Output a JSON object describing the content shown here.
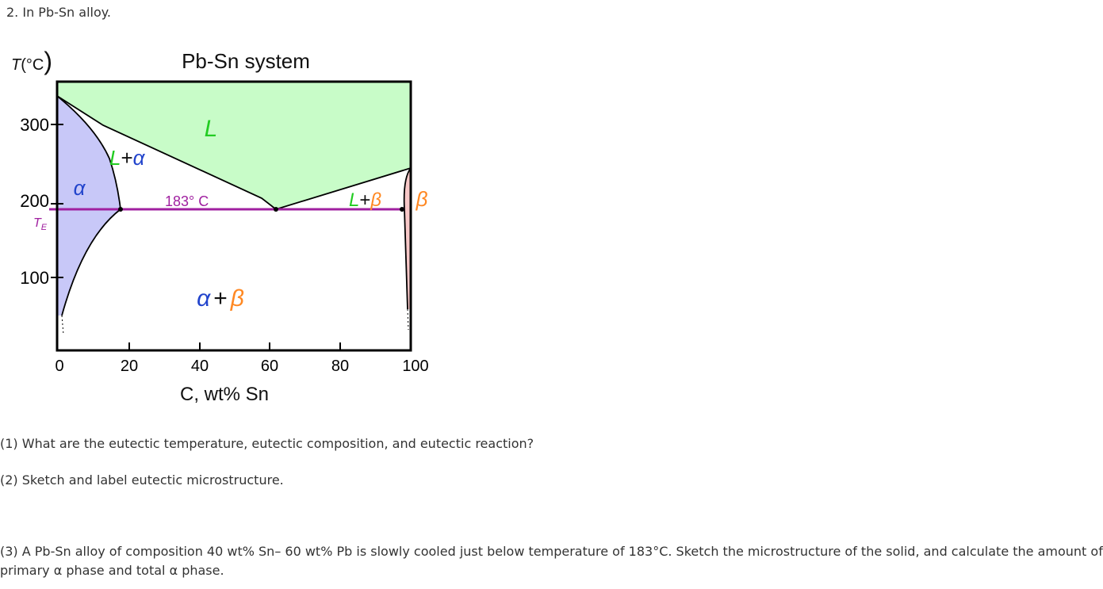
{
  "question_heading": "2. In Pb-Sn alloy.",
  "diagram": {
    "title": "Pb-Sn system",
    "y_axis_label_T": "T",
    "y_axis_label_unit": "(°C",
    "y_axis_label_paren": ")",
    "x_axis_label": "C, wt% Sn",
    "y_ticks": [
      "300",
      "200",
      "100"
    ],
    "x_ticks": [
      "0",
      "20",
      "40",
      "60",
      "80",
      "100"
    ],
    "te_label_T": "T",
    "te_label_sub": "E",
    "eutectic_label": "183°  C",
    "regions": {
      "liquid": "L",
      "alpha": "α",
      "beta": "β",
      "l_plus_alpha_L": "L",
      "l_plus_alpha_plus": "+",
      "l_plus_alpha_a": "α",
      "l_plus_beta_L": "L",
      "l_plus_beta_plus": "+",
      "l_plus_beta_b": "β",
      "two_phase_a": "α",
      "two_phase_plus": "+",
      "two_phase_b": "β"
    },
    "colors": {
      "liquid_fill": "#c8fcc8",
      "alpha_fill": "#c8c8f8",
      "beta_fill": "#f8c8c8",
      "eutectic_line": "#a020a0",
      "label_green": "#22cc22",
      "label_blue": "#2244cc",
      "label_orange": "#ff8822"
    },
    "phase_data": {
      "x_range_wt_pct_sn": [
        0,
        100
      ],
      "eutectic_temperature_c": 183,
      "eutectic_composition_wt_pct_sn": 61.9,
      "alpha_max_solubility_wt_pct_sn": 18.3,
      "beta_min_wt_pct_sn": 97.8,
      "pb_melting_point_c": 327,
      "sn_melting_point_c": 232
    }
  },
  "questions": {
    "q1": "(1) What are the eutectic temperature, eutectic composition, and eutectic reaction?",
    "q2": "(2) Sketch and label eutectic microstructure.",
    "q3": "(3) A Pb-Sn alloy of composition 40 wt% Sn–  60 wt% Pb is slowly cooled just below temperature of 183°C. Sketch the microstructure of the solid, and calculate the amount of primary α phase and total α phase."
  }
}
